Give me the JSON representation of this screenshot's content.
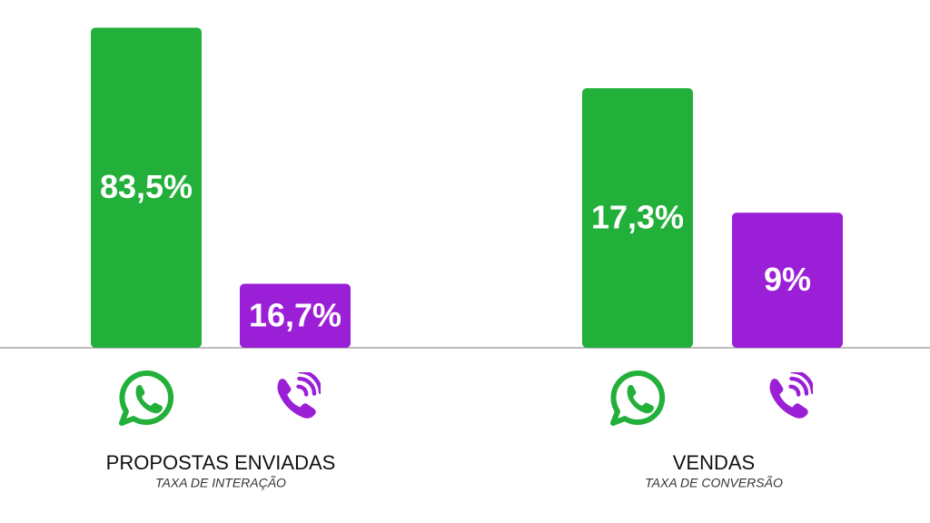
{
  "chart_data": [
    {
      "type": "bar",
      "title": "PROPOSTAS ENVIADAS",
      "subtitle": "TAXA DE INTERAÇÃO",
      "categories": [
        null,
        null
      ],
      "values": [
        83.5,
        16.7
      ],
      "value_labels": [
        "83,5%",
        "16,7%"
      ],
      "colors": [
        "#22b03a",
        "#9b1fd6"
      ],
      "ylim": [
        0,
        90
      ]
    },
    {
      "type": "bar",
      "title": "VENDAS",
      "subtitle": "TAXA DE CONVERSÃO",
      "categories": [
        null,
        null
      ],
      "values": [
        17.3,
        9
      ],
      "value_labels": [
        "17,3%",
        "9%"
      ],
      "colors": [
        "#22b03a",
        "#9b1fd6"
      ],
      "ylim": [
        0,
        23
      ]
    }
  ]
}
